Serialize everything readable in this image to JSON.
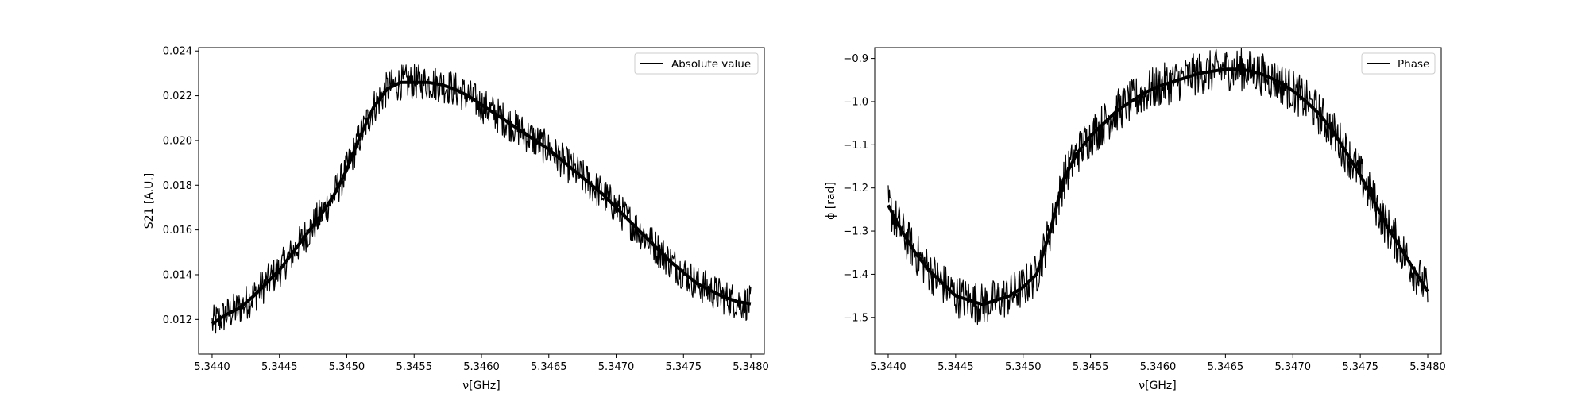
{
  "chart_data": [
    {
      "type": "line",
      "xlabel": "ν[GHz]",
      "ylabel": "S21 [A.U.]",
      "xlim": [
        5.3439,
        5.3481
      ],
      "ylim": [
        0.01045,
        0.02415
      ],
      "xticks": [
        5.344,
        5.3445,
        5.345,
        5.3455,
        5.346,
        5.3465,
        5.347,
        5.3475,
        5.348
      ],
      "xtick_labels": [
        "5.3440",
        "5.3445",
        "5.3450",
        "5.3455",
        "5.3460",
        "5.3465",
        "5.3470",
        "5.3475",
        "5.3480"
      ],
      "yticks": [
        0.012,
        0.014,
        0.016,
        0.018,
        0.02,
        0.022,
        0.024
      ],
      "ytick_labels": [
        "0.012",
        "0.014",
        "0.016",
        "0.018",
        "0.020",
        "0.022",
        "0.024"
      ],
      "legend": "upper right",
      "grid": false,
      "line_color": "#000000",
      "series": [
        {
          "name": "Absolute value",
          "x": [
            5.344,
            5.3441,
            5.3442,
            5.3443,
            5.3444,
            5.3445,
            5.3446,
            5.3447,
            5.3448,
            5.3449,
            5.345,
            5.3451,
            5.3452,
            5.3453,
            5.3454,
            5.3455,
            5.3456,
            5.3457,
            5.3458,
            5.3459,
            5.346,
            5.3461,
            5.3462,
            5.3463,
            5.3464,
            5.3465,
            5.3466,
            5.3467,
            5.3468,
            5.3469,
            5.347,
            5.3471,
            5.3472,
            5.3473,
            5.3474,
            5.3475,
            5.3476,
            5.3477,
            5.3478,
            5.3479,
            5.348
          ],
          "y": [
            0.0118,
            0.0122,
            0.0125,
            0.013,
            0.0136,
            0.0142,
            0.015,
            0.0158,
            0.0166,
            0.0175,
            0.0187,
            0.0202,
            0.0215,
            0.0223,
            0.0226,
            0.0226,
            0.0226,
            0.0225,
            0.0223,
            0.022,
            0.0216,
            0.0212,
            0.0208,
            0.0204,
            0.02,
            0.0196,
            0.0191,
            0.0186,
            0.0181,
            0.0176,
            0.017,
            0.0164,
            0.0158,
            0.0152,
            0.0146,
            0.0141,
            0.0136,
            0.0133,
            0.013,
            0.0128,
            0.0127
          ],
          "noise_band": 0.0008
        }
      ]
    },
    {
      "type": "line",
      "xlabel": "ν[GHz]",
      "ylabel": "ϕ [rad]",
      "xlim": [
        5.3439,
        5.3481
      ],
      "ylim": [
        -1.585,
        -0.875
      ],
      "xticks": [
        5.344,
        5.3445,
        5.345,
        5.3455,
        5.346,
        5.3465,
        5.347,
        5.3475,
        5.348
      ],
      "xtick_labels": [
        "5.3440",
        "5.3445",
        "5.3450",
        "5.3455",
        "5.3460",
        "5.3465",
        "5.3470",
        "5.3475",
        "5.3480"
      ],
      "yticks": [
        -1.5,
        -1.4,
        -1.3,
        -1.2,
        -1.1,
        -1.0,
        -0.9
      ],
      "ytick_labels": [
        "−1.5",
        "−1.4",
        "−1.3",
        "−1.2",
        "−1.1",
        "−1.0",
        "−0.9"
      ],
      "legend": "upper right",
      "grid": false,
      "line_color": "#000000",
      "series": [
        {
          "name": "Phase",
          "x": [
            5.344,
            5.3441,
            5.3442,
            5.3443,
            5.3444,
            5.3445,
            5.3446,
            5.3447,
            5.3448,
            5.3449,
            5.345,
            5.3451,
            5.3452,
            5.3453,
            5.3454,
            5.3455,
            5.3456,
            5.3457,
            5.3458,
            5.3459,
            5.346,
            5.3461,
            5.3462,
            5.3463,
            5.3464,
            5.3465,
            5.3466,
            5.3467,
            5.3468,
            5.3469,
            5.347,
            5.3471,
            5.3472,
            5.3473,
            5.3474,
            5.3475,
            5.3476,
            5.3477,
            5.3478,
            5.3479,
            5.348
          ],
          "y": [
            -1.24,
            -1.3,
            -1.35,
            -1.39,
            -1.42,
            -1.45,
            -1.46,
            -1.47,
            -1.46,
            -1.45,
            -1.43,
            -1.4,
            -1.3,
            -1.18,
            -1.12,
            -1.08,
            -1.05,
            -1.02,
            -1.0,
            -0.98,
            -0.965,
            -0.955,
            -0.945,
            -0.935,
            -0.93,
            -0.925,
            -0.925,
            -0.93,
            -0.94,
            -0.955,
            -0.975,
            -1.0,
            -1.03,
            -1.07,
            -1.12,
            -1.17,
            -1.23,
            -1.29,
            -1.34,
            -1.39,
            -1.44
          ],
          "noise_band": 0.05
        }
      ]
    }
  ]
}
